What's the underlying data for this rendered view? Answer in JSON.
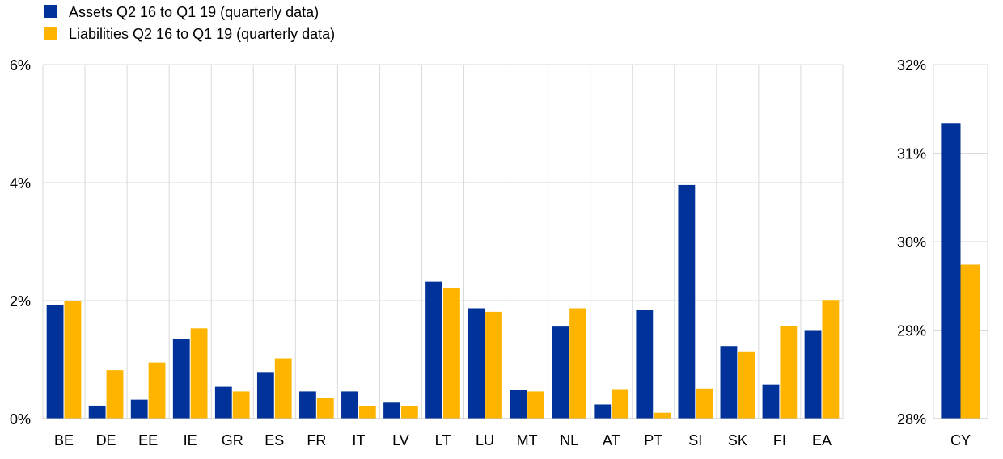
{
  "chart_data": [
    {
      "type": "bar",
      "title": "",
      "xlabel": "",
      "ylabel": "",
      "categories": [
        "BE",
        "DE",
        "EE",
        "IE",
        "GR",
        "ES",
        "FR",
        "IT",
        "LV",
        "LT",
        "LU",
        "MT",
        "NL",
        "AT",
        "PT",
        "SI",
        "SK",
        "FI",
        "EA"
      ],
      "series": [
        {
          "name": "Assets Q2 16 to Q1 19 (quarterly data)",
          "color": "#003299",
          "values": [
            1.92,
            0.22,
            0.32,
            1.35,
            0.54,
            0.79,
            0.46,
            0.46,
            0.27,
            2.32,
            1.87,
            0.48,
            1.56,
            0.24,
            1.84,
            3.96,
            1.23,
            0.58,
            1.5
          ]
        },
        {
          "name": "Liabilities Q2 16 to Q1 19 (quarterly data)",
          "color": "#FFB400",
          "values": [
            2.0,
            0.82,
            0.95,
            1.53,
            0.46,
            1.02,
            0.35,
            0.21,
            0.21,
            2.21,
            1.81,
            0.46,
            1.87,
            0.5,
            0.1,
            0.51,
            1.14,
            1.57,
            2.01
          ]
        }
      ],
      "ylim": [
        0,
        6
      ],
      "yticks": [
        0,
        2,
        4,
        6
      ],
      "ytick_labels": [
        "0%",
        "2%",
        "4%",
        "6%"
      ],
      "grid": true,
      "legend": "top-left"
    },
    {
      "type": "bar",
      "title": "",
      "xlabel": "",
      "ylabel": "",
      "categories": [
        "CY"
      ],
      "series": [
        {
          "name": "Assets Q2 16 to Q1 19 (quarterly data)",
          "color": "#003299",
          "values": [
            31.34
          ]
        },
        {
          "name": "Liabilities Q2 16 to Q1 19 (quarterly data)",
          "color": "#FFB400",
          "values": [
            29.74
          ]
        }
      ],
      "ylim": [
        28,
        32
      ],
      "yticks": [
        28,
        29,
        30,
        31,
        32
      ],
      "ytick_labels": [
        "28%",
        "29%",
        "30%",
        "31%",
        "32%"
      ],
      "grid": true
    }
  ]
}
